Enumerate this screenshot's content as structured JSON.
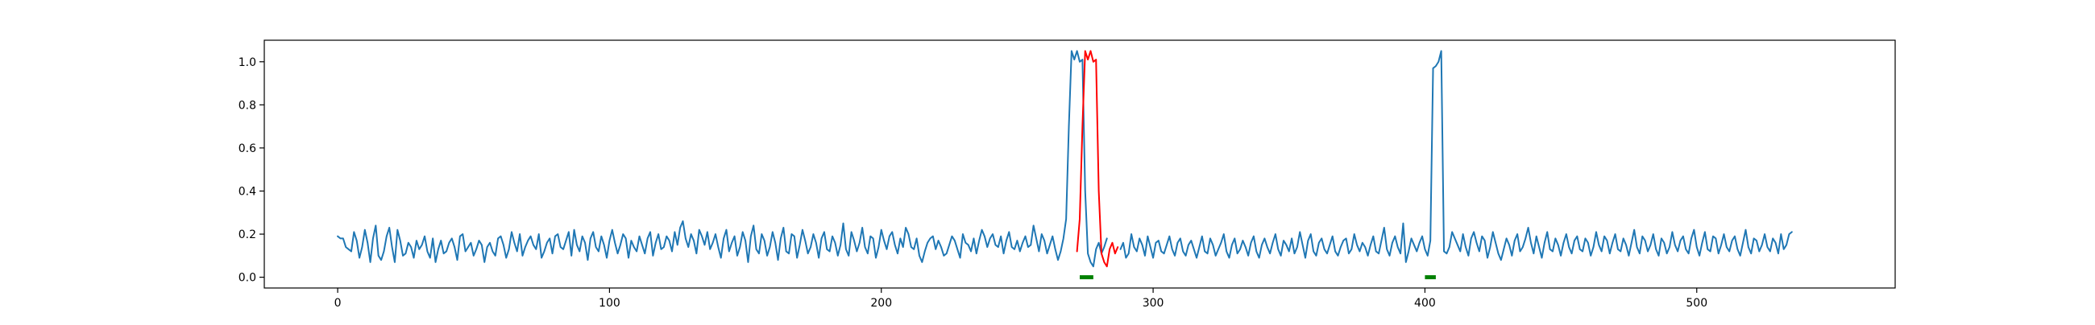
{
  "chart_data": {
    "type": "line",
    "title": "",
    "xlabel": "",
    "ylabel": "",
    "xlim": [
      -27,
      573
    ],
    "ylim": [
      -0.05,
      1.1
    ],
    "grid": false,
    "legend": "none",
    "x_ticks": [
      0,
      100,
      200,
      300,
      400,
      500
    ],
    "y_ticks": [
      0.0,
      0.2,
      0.4,
      0.6,
      0.8,
      1.0
    ],
    "x_tick_labels": [
      "0",
      "100",
      "200",
      "300",
      "400",
      "500"
    ],
    "y_tick_labels": [
      "0.0",
      "0.2",
      "0.4",
      "0.6",
      "0.8",
      "1.0"
    ],
    "colors": {
      "signal": "#1f77b4",
      "highlight": "#ff0000",
      "marker": "#008000"
    },
    "series": [
      {
        "x_start": 0,
        "x_step": 1,
        "values": [
          0.19,
          0.18,
          0.18,
          0.14,
          0.13,
          0.12,
          0.21,
          0.17,
          0.09,
          0.14,
          0.22,
          0.16,
          0.07,
          0.18,
          0.24,
          0.1,
          0.08,
          0.12,
          0.19,
          0.23,
          0.14,
          0.07,
          0.22,
          0.17,
          0.1,
          0.11,
          0.16,
          0.14,
          0.09,
          0.17,
          0.13,
          0.15,
          0.19,
          0.12,
          0.09,
          0.18,
          0.07,
          0.13,
          0.17,
          0.11,
          0.12,
          0.16,
          0.18,
          0.14,
          0.08,
          0.19,
          0.2,
          0.12,
          0.14,
          0.16,
          0.1,
          0.13,
          0.17,
          0.15,
          0.07,
          0.14,
          0.16,
          0.12,
          0.1,
          0.18,
          0.19,
          0.15,
          0.09,
          0.13,
          0.21,
          0.16,
          0.12,
          0.2,
          0.1,
          0.14,
          0.17,
          0.19,
          0.15,
          0.13,
          0.2,
          0.09,
          0.12,
          0.16,
          0.18,
          0.11,
          0.19,
          0.2,
          0.14,
          0.13,
          0.17,
          0.21,
          0.1,
          0.22,
          0.15,
          0.12,
          0.19,
          0.16,
          0.08,
          0.18,
          0.21,
          0.14,
          0.12,
          0.19,
          0.15,
          0.09,
          0.17,
          0.22,
          0.16,
          0.11,
          0.15,
          0.2,
          0.18,
          0.09,
          0.17,
          0.14,
          0.12,
          0.19,
          0.15,
          0.11,
          0.18,
          0.21,
          0.1,
          0.16,
          0.2,
          0.13,
          0.14,
          0.19,
          0.17,
          0.12,
          0.21,
          0.15,
          0.23,
          0.26,
          0.18,
          0.14,
          0.2,
          0.17,
          0.11,
          0.22,
          0.19,
          0.15,
          0.21,
          0.13,
          0.16,
          0.2,
          0.14,
          0.09,
          0.18,
          0.22,
          0.12,
          0.16,
          0.19,
          0.1,
          0.14,
          0.21,
          0.17,
          0.07,
          0.19,
          0.24,
          0.13,
          0.11,
          0.2,
          0.17,
          0.1,
          0.14,
          0.21,
          0.16,
          0.08,
          0.18,
          0.23,
          0.12,
          0.11,
          0.2,
          0.19,
          0.09,
          0.15,
          0.22,
          0.17,
          0.11,
          0.14,
          0.2,
          0.16,
          0.09,
          0.18,
          0.21,
          0.13,
          0.12,
          0.19,
          0.16,
          0.1,
          0.15,
          0.25,
          0.13,
          0.1,
          0.21,
          0.17,
          0.12,
          0.16,
          0.23,
          0.14,
          0.11,
          0.19,
          0.18,
          0.09,
          0.14,
          0.22,
          0.17,
          0.13,
          0.19,
          0.21,
          0.15,
          0.11,
          0.18,
          0.14,
          0.23,
          0.2,
          0.14,
          0.13,
          0.18,
          0.1,
          0.07,
          0.12,
          0.16,
          0.18,
          0.19,
          0.13,
          0.17,
          0.14,
          0.1,
          0.11,
          0.15,
          0.19,
          0.17,
          0.13,
          0.09,
          0.2,
          0.16,
          0.15,
          0.12,
          0.18,
          0.11,
          0.17,
          0.22,
          0.19,
          0.14,
          0.18,
          0.2,
          0.15,
          0.14,
          0.19,
          0.11,
          0.17,
          0.21,
          0.14,
          0.13,
          0.17,
          0.12,
          0.16,
          0.19,
          0.14,
          0.15,
          0.24,
          0.18,
          0.12,
          0.2,
          0.17,
          0.11,
          0.15,
          0.19,
          0.13,
          0.08,
          0.12,
          0.18,
          0.27,
          0.7,
          1.05,
          1.01,
          1.05,
          1.0,
          1.01,
          0.4,
          0.11,
          0.07,
          0.05,
          0.13,
          0.16,
          0.11,
          0.14,
          0.18
        ],
        "color": "#1f77b4"
      },
      {
        "x_start": 272,
        "x_step": 1,
        "values": [
          0.12,
          0.27,
          0.7,
          1.05,
          1.01,
          1.05,
          1.0,
          1.01,
          0.4,
          0.11,
          0.07,
          0.05,
          0.13,
          0.16,
          0.11,
          0.14
        ],
        "color": "#ff0000"
      },
      {
        "x_start": 288,
        "x_step": 1,
        "values": [
          0.13,
          0.16,
          0.09,
          0.11,
          0.2,
          0.14,
          0.12,
          0.18,
          0.15,
          0.1,
          0.19,
          0.14,
          0.09,
          0.16,
          0.17,
          0.12,
          0.11,
          0.15,
          0.19,
          0.13,
          0.1,
          0.16,
          0.18,
          0.12,
          0.1,
          0.15,
          0.17,
          0.13,
          0.09,
          0.14,
          0.19,
          0.12,
          0.11,
          0.18,
          0.15,
          0.1,
          0.13,
          0.16,
          0.2,
          0.12,
          0.09,
          0.15,
          0.18,
          0.11,
          0.13,
          0.17,
          0.14,
          0.1,
          0.16,
          0.19,
          0.12,
          0.09,
          0.15,
          0.18,
          0.14,
          0.11,
          0.16,
          0.2,
          0.13,
          0.1,
          0.17,
          0.15,
          0.12,
          0.18,
          0.11,
          0.14,
          0.21,
          0.15,
          0.09,
          0.17,
          0.2,
          0.12,
          0.1,
          0.16,
          0.18,
          0.13,
          0.11,
          0.15,
          0.19,
          0.12,
          0.1,
          0.14,
          0.17,
          0.18,
          0.11,
          0.13,
          0.2,
          0.15,
          0.12,
          0.16,
          0.14,
          0.1,
          0.15,
          0.19,
          0.12,
          0.11,
          0.17,
          0.23,
          0.13,
          0.1,
          0.16,
          0.19,
          0.14,
          0.11,
          0.25,
          0.07,
          0.12,
          0.18,
          0.15,
          0.12,
          0.16,
          0.19,
          0.13,
          0.1,
          0.17,
          0.97,
          0.98,
          1.0,
          1.05,
          0.12,
          0.11,
          0.14,
          0.21,
          0.18,
          0.15,
          0.12,
          0.2,
          0.14,
          0.1,
          0.18,
          0.21,
          0.16,
          0.12,
          0.19,
          0.17,
          0.09,
          0.14,
          0.21,
          0.16,
          0.11,
          0.08,
          0.13,
          0.18,
          0.15,
          0.1,
          0.17,
          0.2,
          0.12,
          0.14,
          0.18,
          0.23,
          0.16,
          0.11,
          0.19,
          0.14,
          0.09,
          0.16,
          0.21,
          0.13,
          0.12,
          0.18,
          0.15,
          0.1,
          0.16,
          0.2,
          0.14,
          0.11,
          0.17,
          0.19,
          0.13,
          0.12,
          0.18,
          0.16,
          0.1,
          0.14,
          0.21,
          0.15,
          0.12,
          0.19,
          0.17,
          0.11,
          0.16,
          0.2,
          0.13,
          0.12,
          0.18,
          0.15,
          0.1,
          0.16,
          0.22,
          0.14,
          0.11,
          0.19,
          0.17,
          0.12,
          0.15,
          0.2,
          0.13,
          0.1,
          0.18,
          0.16,
          0.11,
          0.14,
          0.21,
          0.15,
          0.12,
          0.17,
          0.19,
          0.13,
          0.11,
          0.18,
          0.22,
          0.14,
          0.1,
          0.16,
          0.21,
          0.13,
          0.12,
          0.19,
          0.18,
          0.11,
          0.15,
          0.2,
          0.14,
          0.12,
          0.17,
          0.19,
          0.13,
          0.1,
          0.16,
          0.22,
          0.14,
          0.11,
          0.18,
          0.17,
          0.12,
          0.15,
          0.2,
          0.14,
          0.12,
          0.18,
          0.16,
          0.11,
          0.2,
          0.13,
          0.15,
          0.2,
          0.21
        ],
        "color": "#1f77b4"
      }
    ],
    "markers": [
      {
        "x_range": [
          273,
          278
        ],
        "y": 0.0,
        "color": "#008000"
      },
      {
        "x_range": [
          400,
          404
        ],
        "y": 0.0,
        "color": "#008000"
      }
    ]
  }
}
